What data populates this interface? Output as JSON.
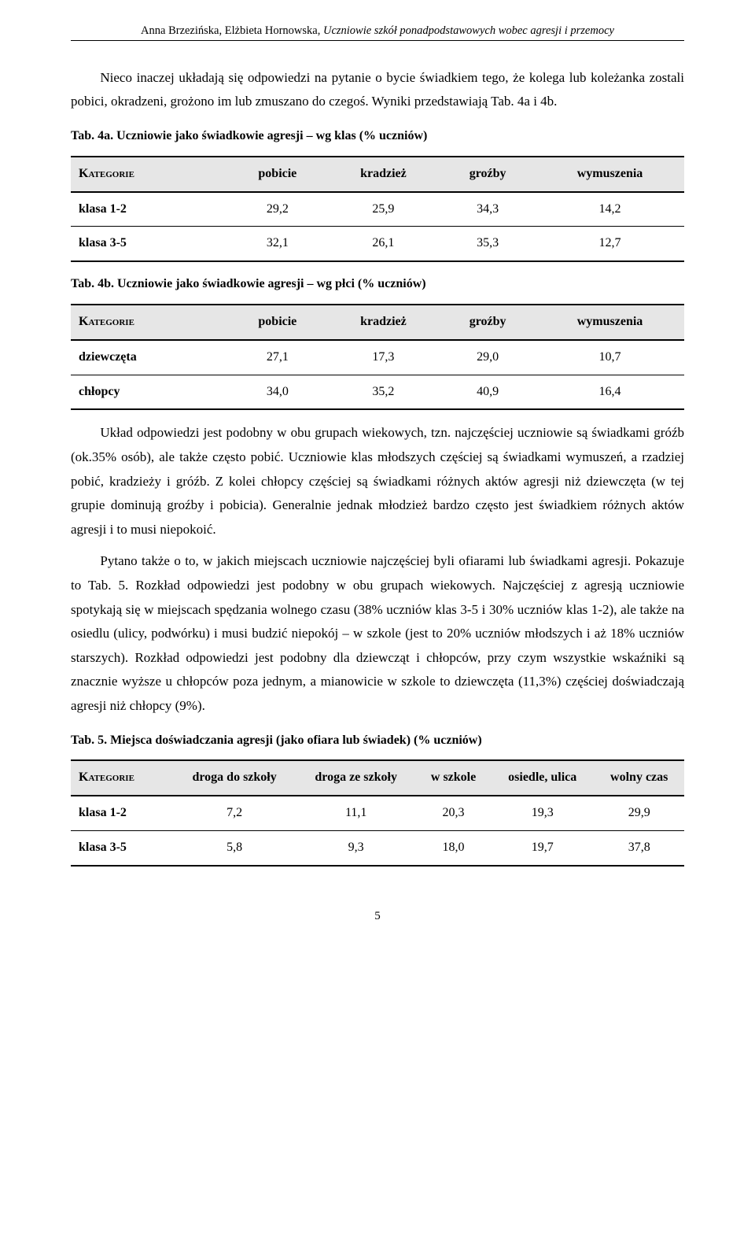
{
  "header": {
    "authors": "Anna Brzezińska, Elżbieta Hornowska, ",
    "title_italic": "Uczniowie szkół ponadpodstawowych wobec agresji i przemocy"
  },
  "para1": "Nieco inaczej układają się odpowiedzi na pytanie o bycie świadkiem tego, że kolega lub koleżanka zostali pobici, okradzeni, grożono im lub zmuszano do czegoś. Wyniki przedstawiają Tab. 4a i 4b.",
  "tab4a": {
    "caption": "Tab. 4a. Uczniowie jako świadkowie agresji – wg klas (% uczniów)",
    "headers": [
      "Kategorie",
      "pobicie",
      "kradzież",
      "groźby",
      "wymuszenia"
    ],
    "rows": [
      {
        "label": "klasa 1-2",
        "v1": "29,2",
        "v2": "25,9",
        "v3": "34,3",
        "v4": "14,2"
      },
      {
        "label": "klasa 3-5",
        "v1": "32,1",
        "v2": "26,1",
        "v3": "35,3",
        "v4": "12,7"
      }
    ]
  },
  "tab4b": {
    "caption": "Tab. 4b. Uczniowie jako świadkowie agresji – wg płci (% uczniów)",
    "headers": [
      "Kategorie",
      "pobicie",
      "kradzież",
      "groźby",
      "wymuszenia"
    ],
    "rows": [
      {
        "label": "dziewczęta",
        "v1": "27,1",
        "v2": "17,3",
        "v3": "29,0",
        "v4": "10,7"
      },
      {
        "label": "chłopcy",
        "v1": "34,0",
        "v2": "35,2",
        "v3": "40,9",
        "v4": "16,4"
      }
    ]
  },
  "para2": "Układ odpowiedzi jest podobny w obu grupach wiekowych, tzn. najczęściej uczniowie są świadkami gróźb (ok.35% osób), ale także często pobić. Uczniowie klas młodszych częściej są świadkami wymuszeń, a rzadziej pobić, kradzieży i gróźb. Z kolei chłopcy częściej są świadkami różnych aktów agresji niż dziewczęta (w tej grupie dominują groźby i pobicia). Generalnie jednak młodzież bardzo często jest świadkiem różnych aktów agresji i to musi niepokoić.",
  "para3": "Pytano także o to, w jakich miejscach uczniowie najczęściej byli ofiarami lub świadkami agresji. Pokazuje to Tab. 5. Rozkład odpowiedzi jest podobny w obu grupach wiekowych. Najczęściej z agresją uczniowie spotykają się w miejscach spędzania wolnego czasu (38% uczniów klas 3-5 i 30% uczniów klas 1-2), ale także na osiedlu (ulicy, podwórku) i musi budzić niepokój – w szkole (jest to 20% uczniów młodszych i aż 18% uczniów starszych). Rozkład odpowiedzi jest podobny dla dziewcząt i chłopców, przy czym wszystkie wskaźniki są znacznie wyższe u chłopców poza jednym, a mianowicie w szkole to dziewczęta (11,3%) częściej doświadczają agresji niż chłopcy (9%).",
  "tab5": {
    "caption": "Tab. 5. Miejsca doświadczania agresji (jako ofiara lub świadek) (% uczniów)",
    "headers": [
      "Kategorie",
      "droga do szkoły",
      "droga ze szkoły",
      "w szkole",
      "osiedle, ulica",
      "wolny czas"
    ],
    "rows": [
      {
        "label": "klasa 1-2",
        "v1": "7,2",
        "v2": "11,1",
        "v3": "20,3",
        "v4": "19,3",
        "v5": "29,9"
      },
      {
        "label": "klasa 3-5",
        "v1": "5,8",
        "v2": "9,3",
        "v3": "18,0",
        "v4": "19,7",
        "v5": "37,8"
      }
    ]
  },
  "page_number": "5"
}
